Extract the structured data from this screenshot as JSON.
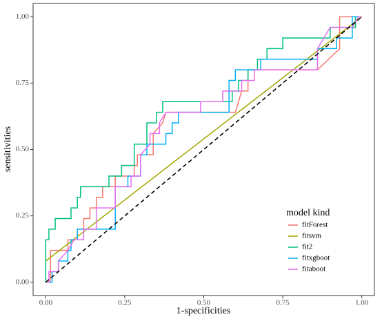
{
  "chart_data": {
    "type": "line",
    "xlabel": "1-specificities",
    "ylabel": "sensitivities",
    "legend_title": "model kind",
    "legend_position": "bottom-right",
    "xlim": [
      -0.04,
      1.04
    ],
    "ylim": [
      -0.05,
      1.05
    ],
    "xticks": [
      {
        "value": 0,
        "label": "0.00"
      },
      {
        "value": 0.25,
        "label": "0.25"
      },
      {
        "value": 0.5,
        "label": "0.50"
      },
      {
        "value": 0.75,
        "label": "0.75"
      },
      {
        "value": 1,
        "label": "1.00"
      }
    ],
    "yticks": [
      {
        "value": 0,
        "label": "0.00"
      },
      {
        "value": 0.25,
        "label": "0.25"
      },
      {
        "value": 0.5,
        "label": "0.50"
      },
      {
        "value": 0.75,
        "label": "0.75"
      },
      {
        "value": 1,
        "label": "1.00"
      }
    ],
    "reference_line": {
      "x": [
        0,
        1
      ],
      "values": [
        0,
        1
      ],
      "color": "#000000"
    },
    "series": [
      {
        "name": "fitForest",
        "color": "#F8766D",
        "x": [
          0,
          0.015,
          0.015,
          0.07,
          0.07,
          0.1,
          0.1,
          0.12,
          0.12,
          0.14,
          0.14,
          0.16,
          0.16,
          0.18,
          0.18,
          0.22,
          0.22,
          0.28,
          0.28,
          0.29,
          0.29,
          0.34,
          0.34,
          0.37,
          0.38,
          0.6,
          0.62,
          0.64,
          0.64,
          0.86,
          0.93,
          0.93,
          1
        ],
        "values": [
          0,
          0,
          0.12,
          0.12,
          0.16,
          0.16,
          0.2,
          0.2,
          0.24,
          0.24,
          0.28,
          0.28,
          0.32,
          0.32,
          0.36,
          0.36,
          0.4,
          0.4,
          0.44,
          0.44,
          0.48,
          0.48,
          0.56,
          0.6,
          0.64,
          0.64,
          0.72,
          0.72,
          0.8,
          0.8,
          0.88,
          1,
          1
        ]
      },
      {
        "name": "fitsvm",
        "color": "#A3A500",
        "x": [
          0,
          1
        ],
        "values": [
          0.08,
          1
        ]
      },
      {
        "name": "fit2",
        "color": "#00BF7D",
        "x": [
          0,
          0,
          0.01,
          0.01,
          0.03,
          0.03,
          0.08,
          0.08,
          0.1,
          0.1,
          0.11,
          0.11,
          0.2,
          0.2,
          0.24,
          0.24,
          0.28,
          0.28,
          0.32,
          0.32,
          0.35,
          0.35,
          0.37,
          0.37,
          0.59,
          0.59,
          0.61,
          0.61,
          0.64,
          0.64,
          0.67,
          0.67,
          0.7,
          0.7,
          0.75,
          0.75,
          0.9,
          0.9,
          0.98,
          0.98,
          1
        ],
        "values": [
          0,
          0.16,
          0.16,
          0.2,
          0.2,
          0.24,
          0.24,
          0.28,
          0.28,
          0.32,
          0.32,
          0.36,
          0.36,
          0.4,
          0.4,
          0.44,
          0.44,
          0.52,
          0.52,
          0.6,
          0.6,
          0.64,
          0.64,
          0.68,
          0.68,
          0.72,
          0.72,
          0.76,
          0.76,
          0.8,
          0.8,
          0.84,
          0.84,
          0.88,
          0.88,
          0.92,
          0.92,
          0.96,
          0.96,
          1,
          1
        ]
      },
      {
        "name": "fitxgboot",
        "color": "#00B0F6",
        "x": [
          0,
          0.02,
          0.02,
          0.04,
          0.04,
          0.07,
          0.07,
          0.08,
          0.08,
          0.1,
          0.1,
          0.22,
          0.22,
          0.26,
          0.26,
          0.3,
          0.3,
          0.32,
          0.32,
          0.38,
          0.38,
          0.4,
          0.4,
          0.42,
          0.42,
          0.58,
          0.58,
          0.6,
          0.6,
          0.68,
          0.68,
          0.86,
          0.86,
          0.92,
          0.92,
          0.97,
          0.97,
          1
        ],
        "values": [
          0,
          0,
          0.04,
          0.04,
          0.08,
          0.08,
          0.12,
          0.12,
          0.16,
          0.16,
          0.2,
          0.2,
          0.36,
          0.36,
          0.4,
          0.4,
          0.48,
          0.48,
          0.52,
          0.52,
          0.56,
          0.56,
          0.6,
          0.6,
          0.64,
          0.64,
          0.76,
          0.76,
          0.8,
          0.8,
          0.84,
          0.84,
          0.88,
          0.88,
          0.92,
          0.92,
          1,
          1
        ]
      },
      {
        "name": "fitaboot",
        "color": "#E76BF3",
        "x": [
          0,
          0.01,
          0.01,
          0.04,
          0.04,
          0.07,
          0.09,
          0.12,
          0.12,
          0.16,
          0.16,
          0.22,
          0.22,
          0.27,
          0.27,
          0.3,
          0.3,
          0.33,
          0.33,
          0.36,
          0.36,
          0.38,
          0.49,
          0.49,
          0.56,
          0.56,
          0.62,
          0.62,
          0.66,
          0.66,
          0.86,
          0.86,
          0.88,
          0.9,
          0.97,
          0.99,
          1
        ],
        "values": [
          0,
          0,
          0.04,
          0.04,
          0.08,
          0.12,
          0.16,
          0.16,
          0.2,
          0.2,
          0.28,
          0.28,
          0.36,
          0.36,
          0.4,
          0.4,
          0.48,
          0.52,
          0.56,
          0.56,
          0.6,
          0.64,
          0.64,
          0.68,
          0.68,
          0.72,
          0.72,
          0.76,
          0.76,
          0.8,
          0.8,
          0.88,
          0.92,
          0.96,
          0.96,
          1,
          1
        ]
      }
    ]
  }
}
